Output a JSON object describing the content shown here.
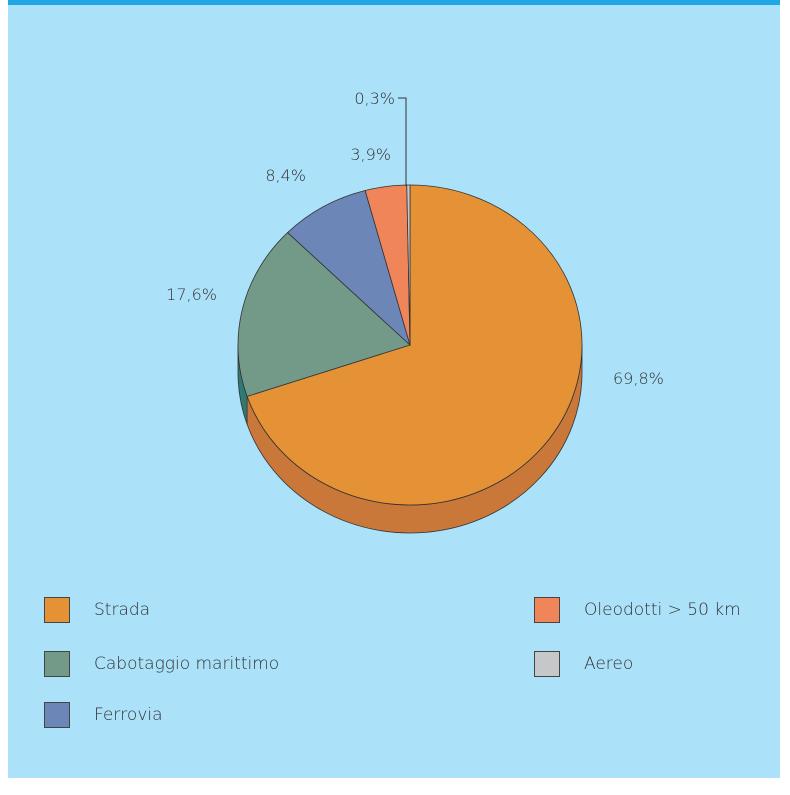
{
  "chart_data": {
    "type": "pie",
    "slices": [
      {
        "name": "Strada",
        "value": 69.8,
        "label": "69,8%",
        "color": "#e59237",
        "side_color": "#c9783a"
      },
      {
        "name": "Cabotaggio marittimo",
        "value": 17.6,
        "label": "17,6%",
        "color": "#739a88",
        "side_color": "#2f7a73"
      },
      {
        "name": "Ferrovia",
        "value": 8.4,
        "label": "8,4%",
        "color": "#6c86b8",
        "side_color": "#4f6690"
      },
      {
        "name": "Oleodotti > 50 km",
        "value": 3.9,
        "label": "3,9%",
        "color": "#f0855a",
        "side_color": "#c96a45"
      },
      {
        "name": "Aereo",
        "value": 0.3,
        "label": "0,3%",
        "color": "#c5c7c9",
        "side_color": "#9a9c9e"
      }
    ],
    "legend": [
      {
        "label": "Strada",
        "color": "#e59237"
      },
      {
        "label": "Cabotaggio marittimo",
        "color": "#739a88"
      },
      {
        "label": "Ferrovia",
        "color": "#6c86b8"
      },
      {
        "label": "Oleodotti > 50 km",
        "color": "#f0855a"
      },
      {
        "label": "Aereo",
        "color": "#c5c7c9"
      }
    ]
  },
  "colors": {
    "background": "#abe1f9",
    "top_rule": "#1fa8e4"
  }
}
